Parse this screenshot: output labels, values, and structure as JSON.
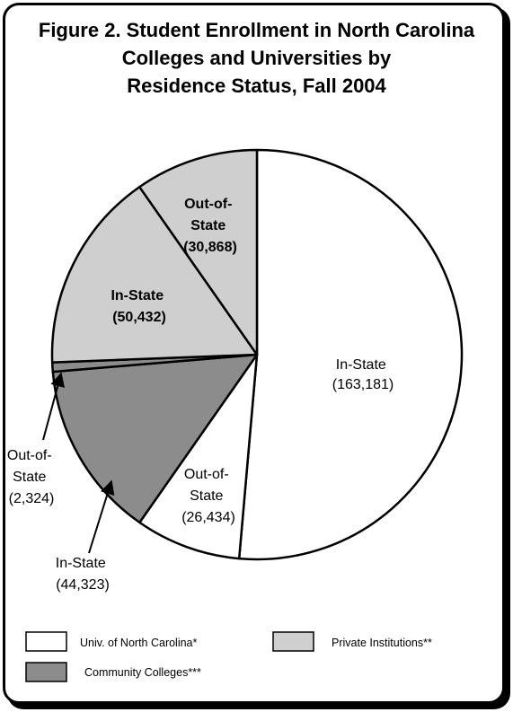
{
  "chart_data": {
    "type": "pie",
    "title_lines": [
      "Figure 2.  Student Enrollment in North Carolina",
      "Colleges and Universities by",
      "Residence Status, Fall 2004"
    ],
    "slices": [
      {
        "group": "Univ. of North Carolina*",
        "label_lines": [
          "In-State",
          "(163,181)"
        ],
        "value": 163181,
        "color": "#ffffff"
      },
      {
        "group": "Univ. of North Carolina*",
        "label_lines": [
          "Out-of-",
          "State",
          "(26,434)"
        ],
        "value": 26434,
        "color": "#ffffff"
      },
      {
        "group": "Community Colleges***",
        "label_lines": [
          "In-State",
          "(44,323)"
        ],
        "value": 44323,
        "color": "#8c8c8c"
      },
      {
        "group": "Community Colleges***",
        "label_lines": [
          "Out-of-",
          "State",
          "(2,324)"
        ],
        "value": 2324,
        "color": "#8c8c8c"
      },
      {
        "group": "Private Institutions**",
        "label_lines": [
          "In-State",
          "(50,432)"
        ],
        "value": 50432,
        "color": "#cfcfcf"
      },
      {
        "group": "Private Institutions**",
        "label_lines": [
          "Out-of-",
          "State",
          "(30,868)"
        ],
        "value": 30868,
        "color": "#cfcfcf"
      }
    ],
    "legend": [
      {
        "label": "Univ. of North Carolina*",
        "color": "#ffffff"
      },
      {
        "label": "Private Institutions**",
        "color": "#cfcfcf"
      },
      {
        "label": "Community Colleges***",
        "color": "#8c8c8c"
      }
    ]
  }
}
